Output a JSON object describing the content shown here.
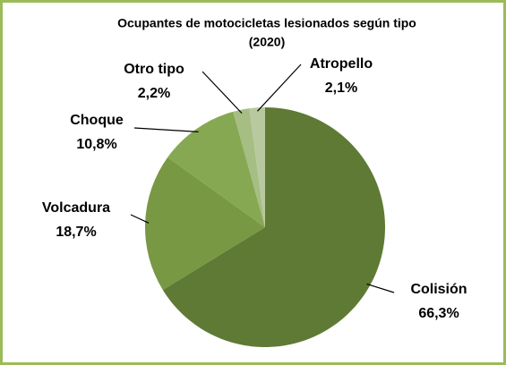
{
  "chart_data": {
    "type": "pie",
    "title": "Ocupantes de motocicletas lesionados según tipo",
    "subtitle": "(2020)",
    "categories": [
      "Colisión",
      "Volcadura",
      "Choque",
      "Otro tipo",
      "Atropello"
    ],
    "values": [
      66.3,
      18.7,
      10.8,
      2.2,
      2.1
    ],
    "value_labels": [
      "66,3%",
      "18,7%",
      "10,8%",
      "2,2%",
      "2,1%"
    ],
    "colors": [
      "#5f7a34",
      "#789843",
      "#87a852",
      "#a6bd83",
      "#b8c9a0"
    ]
  }
}
